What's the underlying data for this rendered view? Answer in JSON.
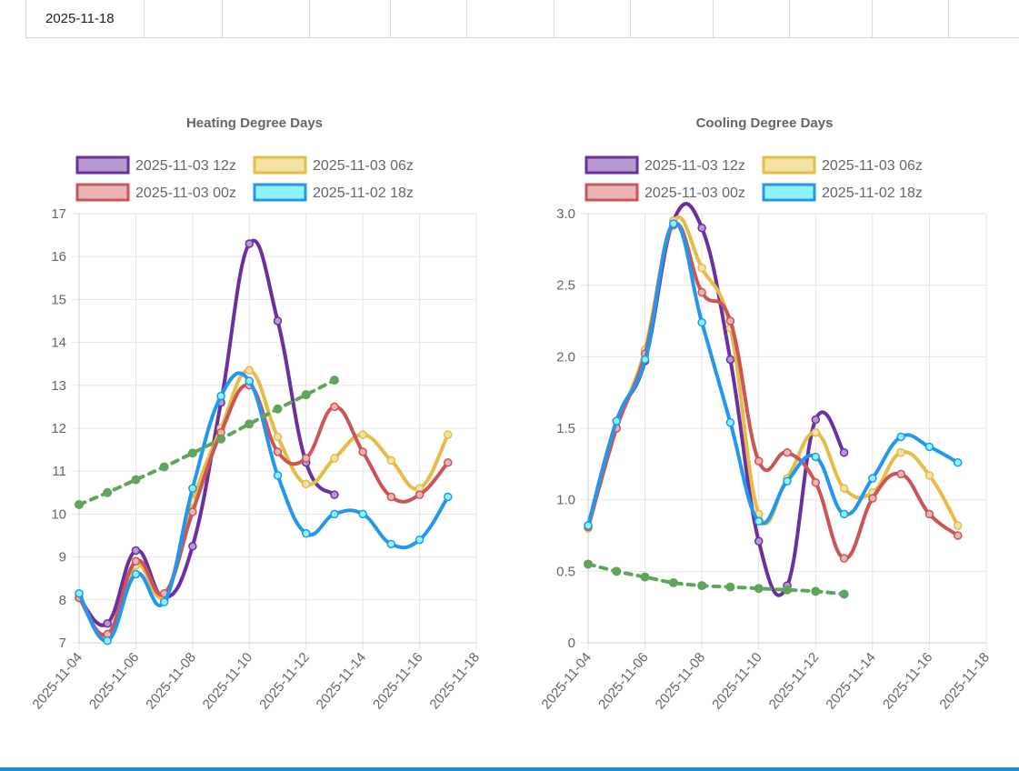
{
  "table": {
    "row_label": "2025-11-18"
  },
  "chart_data": [
    {
      "type": "line",
      "title": "Heating Degree Days",
      "xlabel": "",
      "ylabel": "",
      "x_tick_labels": [
        "2025-11-04",
        "2025-11-06",
        "2025-11-08",
        "2025-11-10",
        "2025-11-12",
        "2025-11-14",
        "2025-11-16",
        "2025-11-18"
      ],
      "y_tick_labels": [
        "7",
        "8",
        "9",
        "10",
        "11",
        "12",
        "13",
        "14",
        "15",
        "16",
        "17"
      ],
      "ylim": [
        7,
        17
      ],
      "legend_position": "top",
      "series": [
        {
          "name": "2025-11-03 12z",
          "color": "#6b2fa0",
          "fill": "#b89ad0",
          "dashed": false,
          "points": [
            [
              0,
              8.05
            ],
            [
              1,
              7.45
            ],
            [
              2,
              9.15
            ],
            [
              3,
              8.05
            ],
            [
              4,
              9.25
            ],
            [
              5,
              12.6
            ],
            [
              6,
              16.3
            ],
            [
              7,
              14.5
            ],
            [
              8,
              11.2
            ],
            [
              9,
              10.45
            ]
          ]
        },
        {
          "name": "2025-11-03 06z",
          "color": "#e5bd45",
          "fill": "#f3e2a6",
          "dashed": false,
          "points": [
            [
              0,
              8.1
            ],
            [
              1,
              7.15
            ],
            [
              2,
              8.8
            ],
            [
              3,
              8.1
            ],
            [
              4,
              10.3
            ],
            [
              5,
              12.0
            ],
            [
              6,
              13.35
            ],
            [
              7,
              11.8
            ],
            [
              8,
              10.7
            ],
            [
              9,
              11.3
            ],
            [
              10,
              11.85
            ],
            [
              11,
              11.25
            ],
            [
              12,
              10.6
            ],
            [
              13,
              11.85
            ]
          ]
        },
        {
          "name": "2025-11-03 00z",
          "color": "#cc5555",
          "fill": "#e8b4b4",
          "dashed": false,
          "points": [
            [
              0,
              8.05
            ],
            [
              1,
              7.2
            ],
            [
              2,
              8.9
            ],
            [
              3,
              8.15
            ],
            [
              4,
              10.05
            ],
            [
              5,
              11.9
            ],
            [
              6,
              13.0
            ],
            [
              7,
              11.45
            ],
            [
              8,
              11.3
            ],
            [
              9,
              12.5
            ],
            [
              10,
              11.45
            ],
            [
              11,
              10.4
            ],
            [
              12,
              10.45
            ],
            [
              13,
              11.2
            ]
          ]
        },
        {
          "name": "2025-11-02 18z",
          "color": "#2098f0",
          "fill": "#8ff3fb",
          "dashed": false,
          "points": [
            [
              0,
              8.15
            ],
            [
              1,
              7.05
            ],
            [
              2,
              8.6
            ],
            [
              3,
              7.95
            ],
            [
              4,
              10.6
            ],
            [
              5,
              12.75
            ],
            [
              6,
              13.1
            ],
            [
              7,
              10.9
            ],
            [
              8,
              9.55
            ],
            [
              9,
              10.0
            ],
            [
              10,
              10.0
            ],
            [
              11,
              9.3
            ],
            [
              12,
              9.4
            ],
            [
              13,
              10.4
            ]
          ]
        },
        {
          "name": "",
          "color": "#5fa65c",
          "fill": "#5fa65c",
          "dashed": true,
          "points": [
            [
              0,
              10.22
            ],
            [
              1,
              10.5
            ],
            [
              2,
              10.8
            ],
            [
              3,
              11.1
            ],
            [
              4,
              11.42
            ],
            [
              5,
              11.75
            ],
            [
              6,
              12.1
            ],
            [
              7,
              12.45
            ],
            [
              8,
              12.78
            ],
            [
              9,
              13.12
            ]
          ]
        }
      ]
    },
    {
      "type": "line",
      "title": "Cooling Degree Days",
      "xlabel": "",
      "ylabel": "",
      "x_tick_labels": [
        "2025-11-04",
        "2025-11-06",
        "2025-11-08",
        "2025-11-10",
        "2025-11-12",
        "2025-11-14",
        "2025-11-16",
        "2025-11-18"
      ],
      "y_tick_labels": [
        "0",
        "0.5",
        "1.0",
        "1.5",
        "2.0",
        "2.5",
        "3.0"
      ],
      "ylim": [
        0,
        3
      ],
      "legend_position": "top",
      "series": [
        {
          "name": "2025-11-03 12z",
          "color": "#6b2fa0",
          "fill": "#b89ad0",
          "dashed": false,
          "points": [
            [
              0,
              0.82
            ],
            [
              1,
              1.55
            ],
            [
              2,
              1.97
            ],
            [
              3,
              2.95
            ],
            [
              4,
              2.9
            ],
            [
              5,
              1.98
            ],
            [
              6,
              0.71
            ],
            [
              7,
              0.4
            ],
            [
              8,
              1.56
            ],
            [
              9,
              1.33
            ]
          ]
        },
        {
          "name": "2025-11-03 06z",
          "color": "#e5bd45",
          "fill": "#f3e2a6",
          "dashed": false,
          "points": [
            [
              0,
              0.8
            ],
            [
              1,
              1.5
            ],
            [
              2,
              2.05
            ],
            [
              3,
              2.95
            ],
            [
              4,
              2.62
            ],
            [
              5,
              2.2
            ],
            [
              6,
              0.9
            ],
            [
              7,
              1.15
            ],
            [
              8,
              1.47
            ],
            [
              9,
              1.08
            ],
            [
              10,
              1.05
            ],
            [
              11,
              1.33
            ],
            [
              12,
              1.17
            ],
            [
              13,
              0.82
            ]
          ]
        },
        {
          "name": "2025-11-03 00z",
          "color": "#cc5555",
          "fill": "#e8b4b4",
          "dashed": false,
          "points": [
            [
              0,
              0.81
            ],
            [
              1,
              1.5
            ],
            [
              2,
              2.02
            ],
            [
              3,
              2.92
            ],
            [
              4,
              2.45
            ],
            [
              5,
              2.25
            ],
            [
              6,
              1.27
            ],
            [
              7,
              1.33
            ],
            [
              8,
              1.12
            ],
            [
              9,
              0.59
            ],
            [
              10,
              1.01
            ],
            [
              11,
              1.18
            ],
            [
              12,
              0.9
            ],
            [
              13,
              0.75
            ]
          ]
        },
        {
          "name": "2025-11-02 18z",
          "color": "#2098f0",
          "fill": "#8ff3fb",
          "dashed": false,
          "points": [
            [
              0,
              0.82
            ],
            [
              1,
              1.55
            ],
            [
              2,
              1.98
            ],
            [
              3,
              2.93
            ],
            [
              4,
              2.24
            ],
            [
              5,
              1.54
            ],
            [
              6,
              0.85
            ],
            [
              7,
              1.13
            ],
            [
              8,
              1.3
            ],
            [
              9,
              0.9
            ],
            [
              10,
              1.15
            ],
            [
              11,
              1.44
            ],
            [
              12,
              1.37
            ],
            [
              13,
              1.26
            ]
          ]
        },
        {
          "name": "",
          "color": "#5fa65c",
          "fill": "#5fa65c",
          "dashed": true,
          "points": [
            [
              0,
              0.55
            ],
            [
              1,
              0.5
            ],
            [
              2,
              0.46
            ],
            [
              3,
              0.42
            ],
            [
              4,
              0.4
            ],
            [
              5,
              0.39
            ],
            [
              6,
              0.38
            ],
            [
              7,
              0.37
            ],
            [
              8,
              0.36
            ],
            [
              9,
              0.34
            ]
          ]
        }
      ]
    }
  ]
}
